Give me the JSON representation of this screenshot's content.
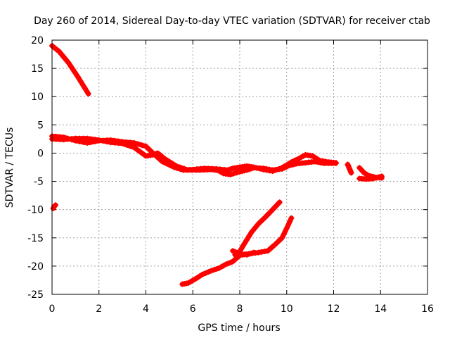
{
  "chart_data": {
    "type": "scatter",
    "title": "Day 260 of 2014, Sidereal Day-to-day VTEC variation (SDTVAR) for receiver ctab",
    "xlabel": "GPS time / hours",
    "ylabel": "SDTVAR / TECUs",
    "xlim": [
      0,
      16
    ],
    "ylim": [
      -25,
      20
    ],
    "xticks": [
      0,
      2,
      4,
      6,
      8,
      10,
      12,
      14,
      16
    ],
    "yticks": [
      20,
      15,
      10,
      5,
      0,
      -5,
      -10,
      -15,
      -20,
      -25
    ],
    "grid": true,
    "color": "#ff0000",
    "series": [
      {
        "name": "track-upper-left",
        "points": [
          [
            0.0,
            19.0
          ],
          [
            0.3,
            18.0
          ],
          [
            0.7,
            16.0
          ],
          [
            1.1,
            13.5
          ],
          [
            1.55,
            10.5
          ]
        ]
      },
      {
        "name": "track-isolated",
        "points": [
          [
            0.05,
            -9.8
          ],
          [
            0.1,
            -9.4
          ],
          [
            0.15,
            -9.2
          ]
        ]
      },
      {
        "name": "track-main-a",
        "points": [
          [
            0.0,
            3.0
          ],
          [
            0.5,
            2.8
          ],
          [
            1.0,
            2.2
          ],
          [
            1.5,
            1.8
          ],
          [
            2.0,
            2.2
          ],
          [
            2.5,
            2.3
          ],
          [
            3.0,
            2.0
          ],
          [
            3.5,
            1.8
          ],
          [
            4.0,
            1.2
          ],
          [
            4.3,
            0.0
          ],
          [
            4.7,
            -1.5
          ],
          [
            5.2,
            -2.5
          ],
          [
            5.6,
            -3.0
          ],
          [
            6.0,
            -2.9
          ],
          [
            6.5,
            -2.7
          ],
          [
            7.0,
            -2.8
          ],
          [
            7.5,
            -3.0
          ],
          [
            7.7,
            -2.7
          ],
          [
            8.0,
            -2.5
          ],
          [
            8.3,
            -2.3
          ],
          [
            8.6,
            -2.5
          ],
          [
            9.0,
            -2.9
          ],
          [
            9.4,
            -3.2
          ],
          [
            9.8,
            -2.6
          ],
          [
            10.2,
            -1.6
          ],
          [
            10.5,
            -1.0
          ],
          [
            10.8,
            -0.3
          ],
          [
            11.1,
            -0.5
          ],
          [
            11.4,
            -1.3
          ],
          [
            11.8,
            -1.6
          ],
          [
            12.1,
            -1.7
          ]
        ]
      },
      {
        "name": "track-main-b",
        "points": [
          [
            0.0,
            2.5
          ],
          [
            0.5,
            2.4
          ],
          [
            1.0,
            2.6
          ],
          [
            1.5,
            2.6
          ],
          [
            2.0,
            2.3
          ],
          [
            2.5,
            1.9
          ],
          [
            3.0,
            1.7
          ],
          [
            3.5,
            1.0
          ],
          [
            4.0,
            -0.5
          ],
          [
            4.3,
            -0.3
          ],
          [
            4.5,
            0.0
          ],
          [
            4.8,
            -1.0
          ],
          [
            5.3,
            -2.3
          ],
          [
            5.8,
            -3.0
          ],
          [
            6.3,
            -3.0
          ],
          [
            6.8,
            -2.9
          ],
          [
            7.1,
            -3.1
          ],
          [
            7.3,
            -3.6
          ],
          [
            7.6,
            -3.8
          ],
          [
            8.0,
            -3.3
          ],
          [
            8.3,
            -3.0
          ],
          [
            8.6,
            -2.6
          ],
          [
            9.0,
            -2.7
          ],
          [
            9.4,
            -3.0
          ],
          [
            9.8,
            -2.8
          ],
          [
            10.1,
            -2.2
          ],
          [
            10.4,
            -1.9
          ],
          [
            10.8,
            -1.7
          ],
          [
            11.2,
            -1.5
          ],
          [
            11.6,
            -1.8
          ],
          [
            12.1,
            -1.8
          ]
        ]
      },
      {
        "name": "track-gap-1",
        "points": [
          [
            12.6,
            -2.0
          ],
          [
            12.65,
            -2.5
          ],
          [
            12.7,
            -3.0
          ],
          [
            12.75,
            -3.5
          ]
        ]
      },
      {
        "name": "track-end",
        "points": [
          [
            13.1,
            -2.6
          ],
          [
            13.3,
            -3.5
          ],
          [
            13.5,
            -4.0
          ],
          [
            13.8,
            -4.3
          ],
          [
            14.05,
            -4.4
          ]
        ]
      },
      {
        "name": "track-end-b",
        "points": [
          [
            13.1,
            -4.5
          ],
          [
            13.4,
            -4.6
          ],
          [
            13.7,
            -4.5
          ],
          [
            14.05,
            -4.1
          ]
        ]
      },
      {
        "name": "track-rising-upper",
        "points": [
          [
            7.8,
            -18.0
          ],
          [
            8.0,
            -17.4
          ],
          [
            8.2,
            -16.0
          ],
          [
            8.5,
            -14.0
          ],
          [
            8.8,
            -12.5
          ],
          [
            9.1,
            -11.3
          ],
          [
            9.4,
            -10.0
          ],
          [
            9.7,
            -8.7
          ]
        ]
      },
      {
        "name": "track-rising-lower",
        "points": [
          [
            5.55,
            -23.2
          ],
          [
            5.8,
            -23.0
          ],
          [
            6.1,
            -22.3
          ],
          [
            6.4,
            -21.5
          ],
          [
            6.8,
            -20.8
          ],
          [
            7.1,
            -20.4
          ],
          [
            7.4,
            -19.7
          ],
          [
            7.7,
            -19.2
          ],
          [
            8.0,
            -18.1
          ],
          [
            8.4,
            -17.8
          ],
          [
            8.8,
            -17.6
          ],
          [
            9.2,
            -17.3
          ],
          [
            9.5,
            -16.2
          ],
          [
            9.8,
            -15.0
          ],
          [
            10.0,
            -13.3
          ],
          [
            10.2,
            -11.5
          ]
        ]
      },
      {
        "name": "track-crossing",
        "points": [
          [
            7.7,
            -17.3
          ],
          [
            8.0,
            -17.8
          ],
          [
            8.3,
            -18.0
          ],
          [
            8.6,
            -17.6
          ]
        ]
      }
    ]
  }
}
